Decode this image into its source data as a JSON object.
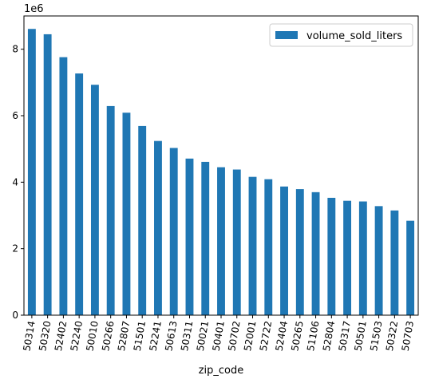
{
  "chart_data": {
    "type": "bar",
    "categories": [
      "50314",
      "50320",
      "52402",
      "52240",
      "50010",
      "50266",
      "52807",
      "51501",
      "52241",
      "50613",
      "50311",
      "50021",
      "50401",
      "50702",
      "52001",
      "52722",
      "52404",
      "50265",
      "51106",
      "52804",
      "50317",
      "50501",
      "51503",
      "50322",
      "50703"
    ],
    "series": [
      {
        "name": "volume_sold_liters",
        "values": [
          8610000,
          8450000,
          7760000,
          7270000,
          6930000,
          6290000,
          6090000,
          5690000,
          5240000,
          5030000,
          4710000,
          4610000,
          4450000,
          4380000,
          4160000,
          4090000,
          3870000,
          3790000,
          3700000,
          3530000,
          3440000,
          3420000,
          3280000,
          3150000,
          2840000
        ]
      }
    ],
    "xlabel": "zip_code",
    "ylabel": "",
    "ylim": [
      0,
      9000000
    ],
    "yticks": [
      0,
      2,
      4,
      6,
      8
    ],
    "y_offset_text": "1e6",
    "y_scale_factor": 1000000,
    "legend_position": "top-right",
    "grid": false,
    "colors": {
      "bar": "#1f77b4",
      "axes": "#000000",
      "legend_border": "#cccccc"
    }
  }
}
